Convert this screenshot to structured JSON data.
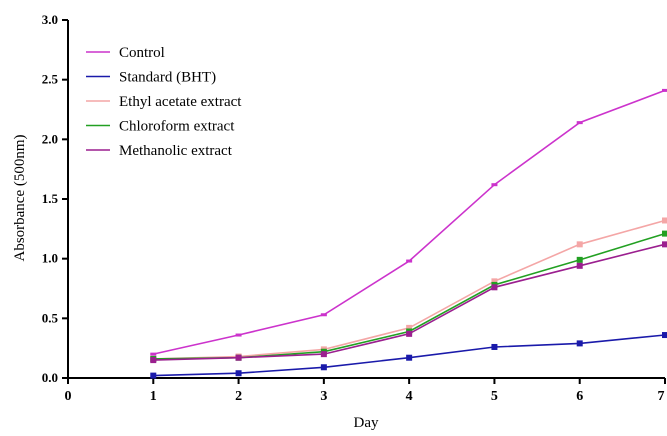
{
  "chart_data": {
    "type": "line",
    "xlabel": "Day",
    "ylabel": "Absorbance (500nm)",
    "xlim": [
      0,
      7
    ],
    "ylim": [
      0,
      3.0
    ],
    "x_ticks": [
      "0",
      "1",
      "2",
      "3",
      "4",
      "5",
      "6",
      "7"
    ],
    "y_ticks": [
      "0.0",
      "0.5",
      "1.0",
      "1.5",
      "2.0",
      "2.5",
      "3.0"
    ],
    "grid": false,
    "legend_position": "top-left",
    "x": [
      1,
      2,
      3,
      4,
      5,
      6,
      7
    ],
    "series": [
      {
        "name": "Control",
        "color": "#cc33cc",
        "marker": "dash",
        "values": [
          0.2,
          0.36,
          0.53,
          0.98,
          1.62,
          2.14,
          2.41
        ]
      },
      {
        "name": "Standard (BHT)",
        "color": "#1a1aaa",
        "marker": "square",
        "values": [
          0.02,
          0.04,
          0.09,
          0.17,
          0.26,
          0.29,
          0.36
        ]
      },
      {
        "name": "Ethyl acetate extract",
        "color": "#f4a6a6",
        "marker": "square",
        "values": [
          0.16,
          0.18,
          0.24,
          0.42,
          0.81,
          1.12,
          1.32
        ]
      },
      {
        "name": "Chloroform extract",
        "color": "#22a022",
        "marker": "square",
        "values": [
          0.16,
          0.17,
          0.22,
          0.39,
          0.78,
          0.99,
          1.21
        ]
      },
      {
        "name": "Methanolic extract",
        "color": "#9b1f8f",
        "marker": "square",
        "values": [
          0.15,
          0.17,
          0.2,
          0.37,
          0.76,
          0.94,
          1.12
        ]
      }
    ]
  }
}
